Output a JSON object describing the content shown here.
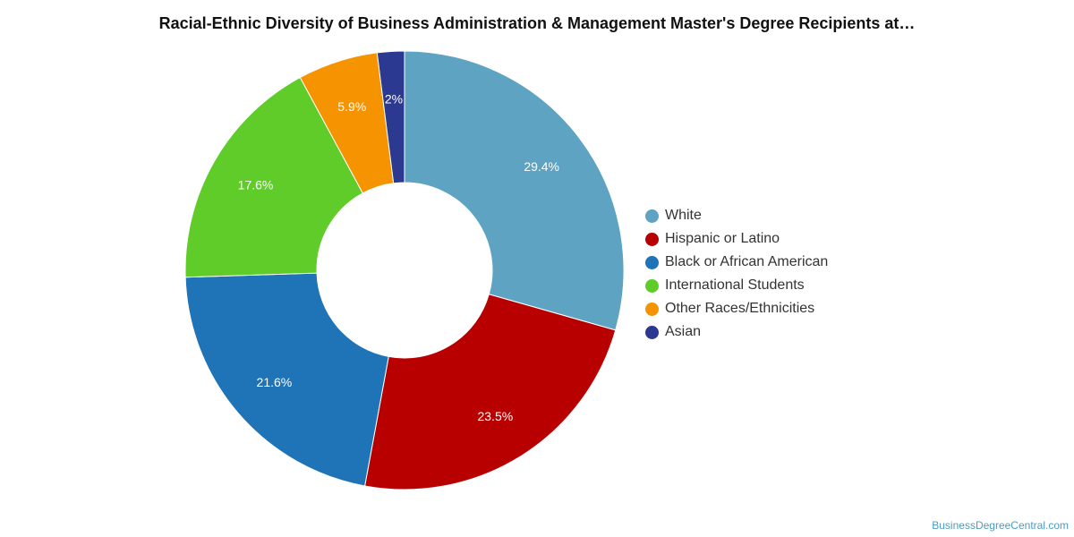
{
  "chart_data": {
    "type": "pie",
    "variant": "donut",
    "title": "Racial-Ethnic Diversity of Business Administration & Management Master's Degree Recipients at…",
    "categories": [
      "White",
      "Hispanic or Latino",
      "Black or African American",
      "International Students",
      "Other Races/Ethnicities",
      "Asian"
    ],
    "values": [
      29.4,
      23.5,
      21.6,
      17.6,
      5.9,
      2
    ],
    "value_labels": [
      "29.4%",
      "23.5%",
      "21.6%",
      "17.6%",
      "5.9%",
      "2%"
    ],
    "colors": [
      "#5ea3c1",
      "#b80000",
      "#1f73b7",
      "#5fcc29",
      "#f59300",
      "#2b3990"
    ],
    "legend_position": "right"
  },
  "watermark": "BusinessDegreeCentral.com"
}
